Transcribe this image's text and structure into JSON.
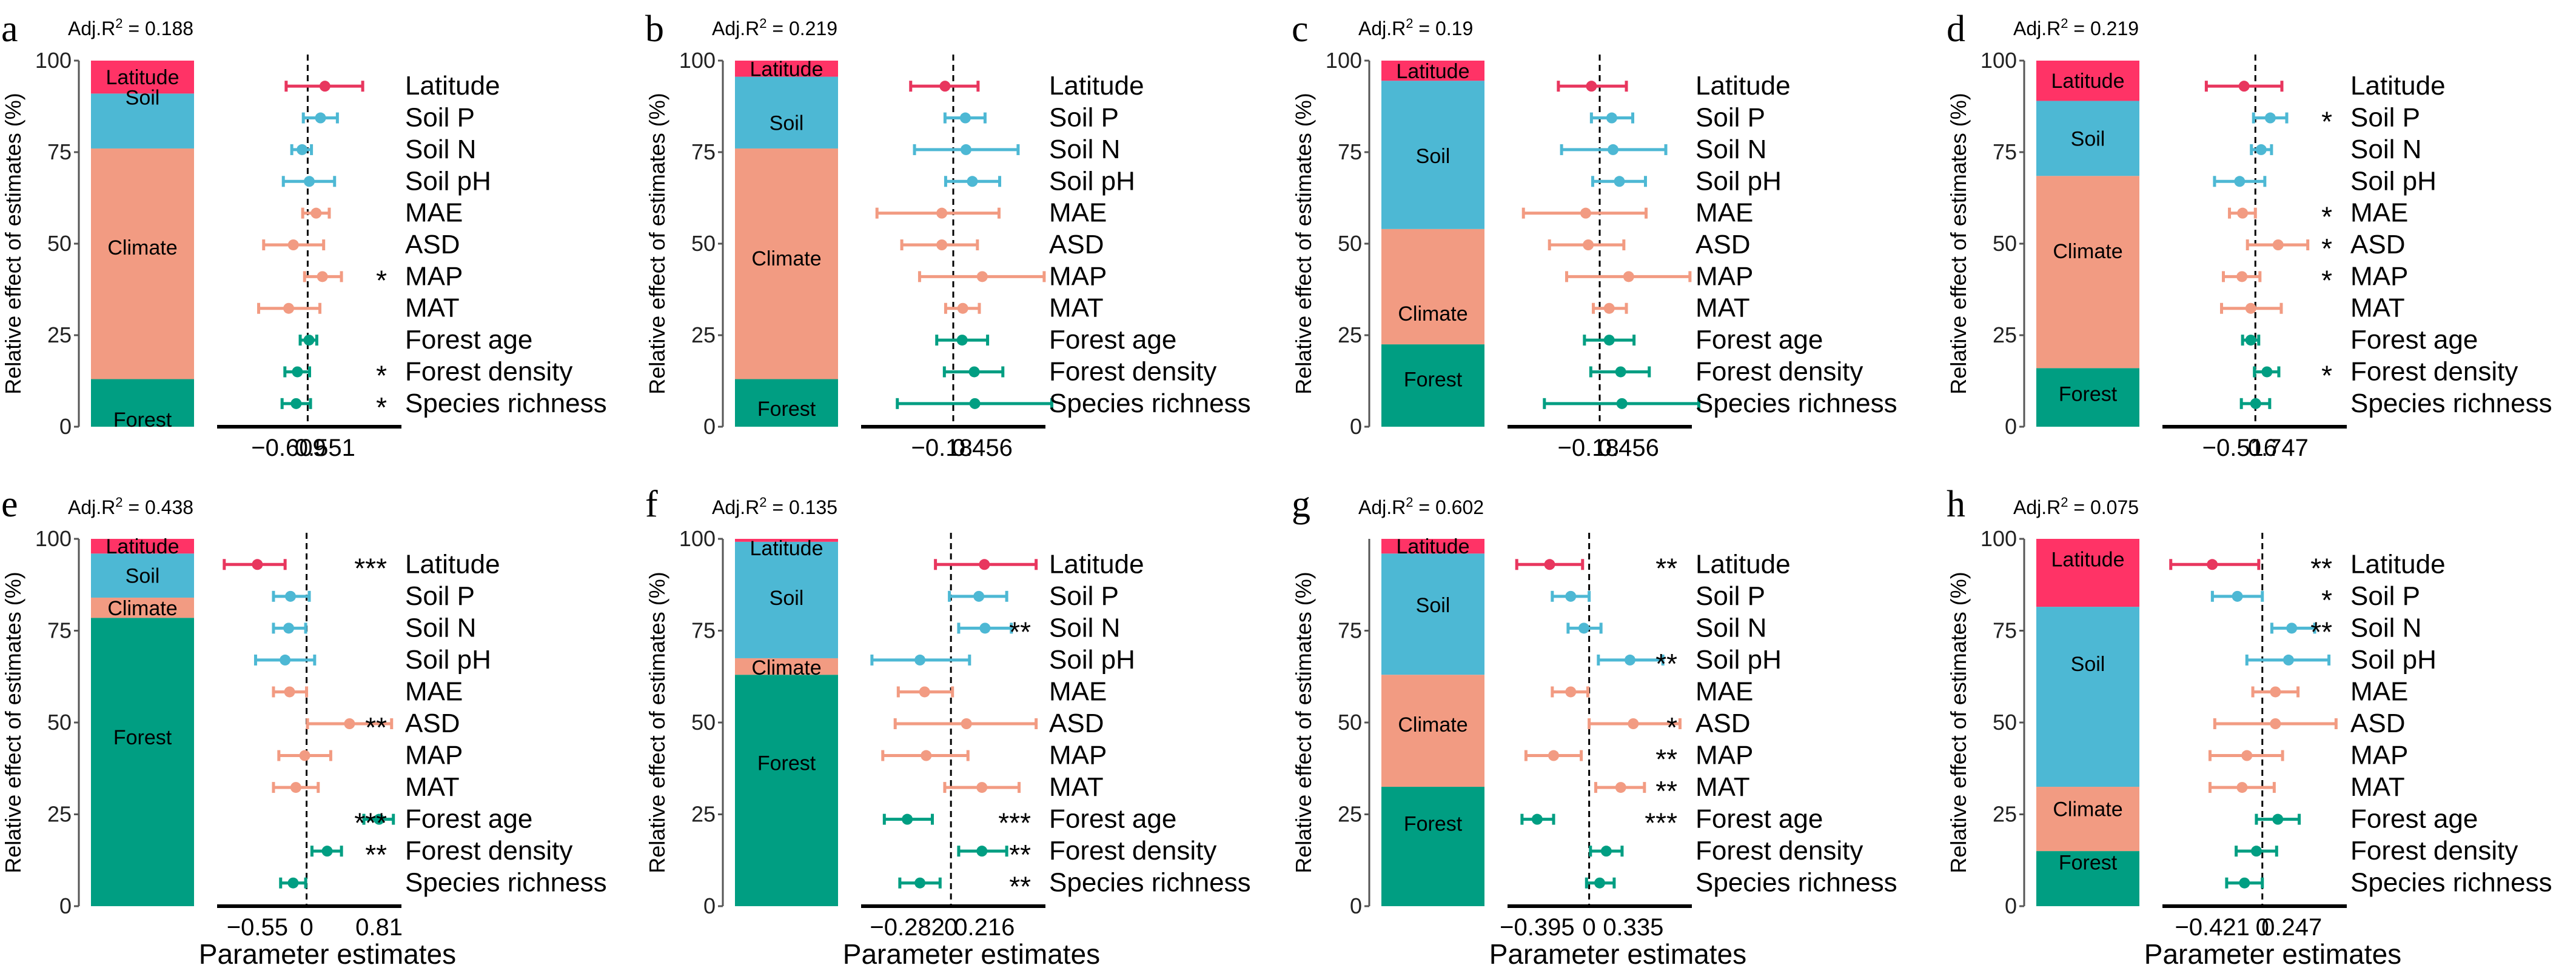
{
  "figure": {
    "colors": {
      "Latitude": "#FF3366",
      "Soil": "#4DB8D4",
      "Climate": "#F29B82",
      "Forest": "#009E82",
      "Latitude_point": "#E8365E",
      "axis": "#000000"
    },
    "group_names": [
      "Latitude",
      "Soil",
      "Climate",
      "Forest"
    ],
    "variables": [
      "Latitude",
      "Soil P",
      "Soil N",
      "Soil pH",
      "MAE",
      "ASD",
      "MAP",
      "MAT",
      "Forest age",
      "Forest density",
      "Species richness"
    ],
    "variable_groups": [
      "Latitude",
      "Soil",
      "Soil",
      "Soil",
      "Climate",
      "Climate",
      "Climate",
      "Climate",
      "Forest",
      "Forest",
      "Forest"
    ],
    "bar_ylabel": "Relative effect of estimates (%)",
    "xlabel": "Parameter estimates"
  },
  "chart_data": [
    {
      "panel": "a",
      "type": "bar+forest",
      "r2_label": "Adj.R",
      "r2_value": "= 0.188",
      "bar_ylim": [
        0,
        100
      ],
      "bar_yticks": [
        "0",
        "25",
        "50",
        "75",
        "100"
      ],
      "bar_shares": {
        "Forest": 13,
        "Climate": 63,
        "Soil": 15,
        "Latitude": 9
      },
      "bar_label_pos": {
        "Latitude": 95.5,
        "Soil": 90,
        "Climate": 49,
        "Forest": 2
      },
      "xticks": [
        -0.609,
        0.551
      ],
      "xtick_labels": [
        "−0.609",
        "0.551"
      ],
      "show_xlabel": false,
      "xlim": [
        -2.9,
        3.0
      ],
      "estimates": [
        0.551,
        0.41,
        -0.18,
        0.05,
        0.27,
        -0.46,
        0.47,
        -0.609,
        0.04,
        -0.33,
        -0.37
      ],
      "ci_low": [
        -0.69,
        -0.14,
        -0.51,
        -0.78,
        -0.16,
        -1.41,
        -0.1,
        -1.57,
        -0.24,
        -0.73,
        -0.82
      ],
      "ci_high": [
        1.76,
        0.95,
        0.12,
        0.86,
        0.69,
        0.51,
        1.08,
        0.39,
        0.29,
        0.06,
        0.09
      ],
      "significance": [
        "",
        "",
        "",
        "",
        "",
        "",
        "*",
        "",
        "",
        "*",
        "*"
      ]
    },
    {
      "panel": "b",
      "type": "bar+forest",
      "r2_label": "Adj.R",
      "r2_value": "= 0.219",
      "bar_ylim": [
        0,
        100
      ],
      "bar_yticks": [
        "0",
        "25",
        "50",
        "75",
        "100"
      ],
      "bar_shares": {
        "Forest": 13,
        "Climate": 63,
        "Soil": 19.6,
        "Latitude": 4.4
      },
      "bar_label_pos": {
        "Latitude": 97.8,
        "Soil": 83,
        "Climate": 46,
        "Forest": 5
      },
      "xticks": [
        -0.18,
        0.456
      ],
      "xtick_labels": [
        "−0.18",
        "0.456"
      ],
      "show_xlabel": false,
      "xlim": [
        -1.45,
        1.45
      ],
      "estimates": [
        -0.13,
        0.19,
        0.2,
        0.3,
        -0.18,
        -0.18,
        0.456,
        0.15,
        0.14,
        0.33,
        0.34
      ],
      "ci_low": [
        -0.67,
        -0.13,
        -0.61,
        -0.12,
        -1.2,
        -0.81,
        -0.53,
        -0.12,
        -0.26,
        -0.14,
        -0.88
      ],
      "ci_high": [
        0.39,
        0.5,
        1.02,
        0.73,
        0.72,
        0.38,
        1.43,
        0.41,
        0.54,
        0.78,
        1.55
      ],
      "significance": [
        "",
        "",
        "",
        "",
        "",
        "",
        "",
        "",
        "",
        "",
        ""
      ]
    },
    {
      "panel": "c",
      "type": "bar+forest",
      "r2_label": "Adj.R",
      "r2_value": "= 0.19",
      "bar_ylim": [
        0,
        100
      ],
      "bar_yticks": [
        "0",
        "25",
        "50",
        "75",
        "100"
      ],
      "bar_shares": {
        "Forest": 22.5,
        "Climate": 31.5,
        "Soil": 40.5,
        "Latitude": 5.5
      },
      "bar_label_pos": {
        "Latitude": 97.2,
        "Soil": 74,
        "Climate": 31,
        "Forest": 13
      },
      "xticks": [
        -0.18,
        0.456
      ],
      "xtick_labels": [
        "−0.18",
        "0.456"
      ],
      "show_xlabel": false,
      "xlim": [
        -1.45,
        1.45
      ],
      "estimates": [
        -0.13,
        0.19,
        0.21,
        0.31,
        -0.22,
        -0.18,
        0.456,
        0.15,
        0.15,
        0.33,
        0.35
      ],
      "ci_low": [
        -0.65,
        -0.13,
        -0.6,
        -0.11,
        -1.2,
        -0.79,
        -0.52,
        -0.1,
        -0.24,
        -0.14,
        -0.87
      ],
      "ci_high": [
        0.42,
        0.52,
        1.04,
        0.72,
        0.73,
        0.38,
        1.42,
        0.42,
        0.54,
        0.78,
        1.56
      ],
      "significance": [
        "",
        "",
        "",
        "",
        "",
        "",
        "",
        "",
        "",
        "",
        ""
      ]
    },
    {
      "panel": "d",
      "type": "bar+forest",
      "r2_label": "Adj.R",
      "r2_value": "= 0.219",
      "bar_ylim": [
        0,
        100
      ],
      "bar_yticks": [
        "0",
        "25",
        "50",
        "75",
        "100"
      ],
      "bar_shares": {
        "Forest": 16,
        "Climate": 52.5,
        "Soil": 20.5,
        "Latitude": 11
      },
      "bar_label_pos": {
        "Latitude": 94.5,
        "Soil": 78.7,
        "Climate": 48,
        "Forest": 9
      },
      "xticks": [
        -0.516,
        0.747
      ],
      "xtick_labels": [
        "−0.516",
        "0.747"
      ],
      "show_xlabel": false,
      "xlim": [
        -3.05,
        3.0
      ],
      "estimates": [
        -0.37,
        0.49,
        0.19,
        -0.516,
        -0.42,
        0.747,
        -0.44,
        -0.15,
        -0.15,
        0.38,
        0.01
      ],
      "ci_low": [
        -1.61,
        -0.06,
        -0.13,
        -1.34,
        -0.85,
        -0.26,
        -1.05,
        -1.11,
        -0.42,
        -0.03,
        -0.46
      ],
      "ci_high": [
        0.87,
        1.03,
        0.53,
        0.31,
        0.0,
        1.72,
        0.15,
        0.85,
        0.11,
        0.77,
        0.47
      ],
      "significance": [
        "",
        "*",
        "",
        "",
        "*",
        "*",
        "*",
        "",
        "",
        "*",
        ""
      ]
    },
    {
      "panel": "e",
      "type": "bar+forest",
      "r2_label": "Adj.R",
      "r2_value": "= 0.438",
      "bar_ylim": [
        0,
        100
      ],
      "bar_yticks": [
        "0",
        "25",
        "50",
        "75",
        "100"
      ],
      "bar_shares": {
        "Forest": 78.5,
        "Climate": 5.5,
        "Soil": 12,
        "Latitude": 4
      },
      "bar_label_pos": {
        "Latitude": 98,
        "Soil": 90,
        "Climate": 81.2,
        "Forest": 46
      },
      "xticks": [
        -0.55,
        0,
        0.81
      ],
      "xtick_labels": [
        "−0.55",
        "0",
        "0.81"
      ],
      "show_xlabel": true,
      "xlim": [
        -1.0,
        1.06
      ],
      "estimates": [
        -0.55,
        -0.18,
        -0.2,
        -0.24,
        -0.19,
        0.48,
        -0.02,
        -0.12,
        0.81,
        0.23,
        -0.15
      ],
      "ci_low": [
        -0.92,
        -0.37,
        -0.37,
        -0.57,
        -0.37,
        0.01,
        -0.31,
        -0.37,
        0.64,
        0.06,
        -0.29
      ],
      "ci_high": [
        -0.24,
        0.03,
        -0.01,
        0.09,
        0.0,
        0.95,
        0.27,
        0.13,
        0.97,
        0.39,
        -0.01
      ],
      "significance": [
        "***",
        "",
        "",
        "",
        "",
        "**",
        "",
        "",
        "***",
        "**",
        ""
      ]
    },
    {
      "panel": "f",
      "type": "bar+forest",
      "r2_label": "Adj.R",
      "r2_value": "= 0.135",
      "bar_ylim": [
        0,
        100
      ],
      "bar_yticks": [
        "0",
        "25",
        "50",
        "75",
        "100"
      ],
      "bar_shares": {
        "Forest": 63,
        "Climate": 4.5,
        "Soil": 31.7,
        "Latitude": 0.8
      },
      "bar_label_pos": {
        "Latitude": 97.5,
        "Soil": 84,
        "Climate": 65,
        "Forest": 39
      },
      "xticks": [
        -0.282,
        0,
        0.216
      ],
      "xtick_labels": [
        "−0.282",
        "0",
        "0.216"
      ],
      "show_xlabel": true,
      "xlim": [
        -0.58,
        0.61
      ],
      "estimates": [
        0.216,
        0.18,
        0.22,
        -0.2,
        -0.17,
        0.1,
        -0.16,
        0.2,
        -0.282,
        0.2,
        -0.2
      ],
      "ci_low": [
        -0.1,
        -0.01,
        0.05,
        -0.51,
        -0.34,
        -0.36,
        -0.44,
        -0.04,
        -0.43,
        0.05,
        -0.33
      ],
      "ci_high": [
        0.55,
        0.36,
        0.39,
        0.12,
        0.01,
        0.55,
        0.11,
        0.44,
        -0.12,
        0.36,
        -0.07
      ],
      "significance": [
        "",
        "",
        "**",
        "",
        "",
        "",
        "",
        "",
        "***",
        "**",
        "**"
      ]
    },
    {
      "panel": "g",
      "type": "bar+forest",
      "r2_label": "Adj.R",
      "r2_value": "= 0.602",
      "bar_ylim": [
        0,
        100
      ],
      "bar_yticks": [
        "0",
        "25",
        "50",
        "75"
      ],
      "bar_shares": {
        "Forest": 32.5,
        "Climate": 30.5,
        "Soil": 33,
        "Latitude": 4
      },
      "bar_label_pos": {
        "Latitude": 98,
        "Soil": 82,
        "Climate": 49.5,
        "Forest": 22.5
      },
      "xticks": [
        -0.395,
        0,
        0.335
      ],
      "xtick_labels": [
        "−0.395",
        "0",
        "0.335"
      ],
      "show_xlabel": true,
      "xlim": [
        -0.62,
        0.78
      ],
      "estimates": [
        -0.3,
        -0.14,
        -0.04,
        0.31,
        -0.14,
        0.335,
        -0.27,
        0.24,
        -0.395,
        0.13,
        0.08
      ],
      "ci_low": [
        -0.55,
        -0.28,
        -0.16,
        0.07,
        -0.28,
        0.0,
        -0.48,
        0.05,
        -0.51,
        0.01,
        -0.02
      ],
      "ci_high": [
        -0.05,
        0.0,
        0.09,
        0.56,
        -0.01,
        0.69,
        -0.06,
        0.42,
        -0.27,
        0.25,
        0.19
      ],
      "significance": [
        "**",
        "",
        "",
        "**",
        "",
        "*",
        "**",
        "**",
        "***",
        "",
        ""
      ]
    },
    {
      "panel": "h",
      "type": "bar+forest",
      "r2_label": "Adj.R",
      "r2_value": "= 0.075",
      "bar_ylim": [
        0,
        100
      ],
      "bar_yticks": [
        "0",
        "25",
        "50",
        "75",
        "100"
      ],
      "bar_shares": {
        "Forest": 15,
        "Climate": 17.5,
        "Soil": 49,
        "Latitude": 18.5
      },
      "bar_label_pos": {
        "Latitude": 94.5,
        "Soil": 66,
        "Climate": 26.5,
        "Forest": 12
      },
      "xticks": [
        -0.421,
        0,
        0.247
      ],
      "xtick_labels": [
        "−0.421",
        "0",
        "0.247"
      ],
      "show_xlabel": true,
      "xlim": [
        -0.84,
        0.71
      ],
      "estimates": [
        -0.421,
        -0.21,
        0.247,
        0.22,
        0.11,
        0.11,
        -0.13,
        -0.17,
        0.13,
        -0.05,
        -0.15
      ],
      "ci_low": [
        -0.77,
        -0.42,
        0.08,
        -0.13,
        -0.08,
        -0.4,
        -0.44,
        -0.44,
        -0.05,
        -0.22,
        -0.3
      ],
      "ci_high": [
        -0.03,
        0.0,
        0.44,
        0.56,
        0.3,
        0.62,
        0.17,
        0.1,
        0.31,
        0.12,
        0.0
      ],
      "significance": [
        "**",
        "*",
        "**",
        "",
        "",
        "",
        "",
        "",
        "",
        "",
        ""
      ]
    }
  ]
}
